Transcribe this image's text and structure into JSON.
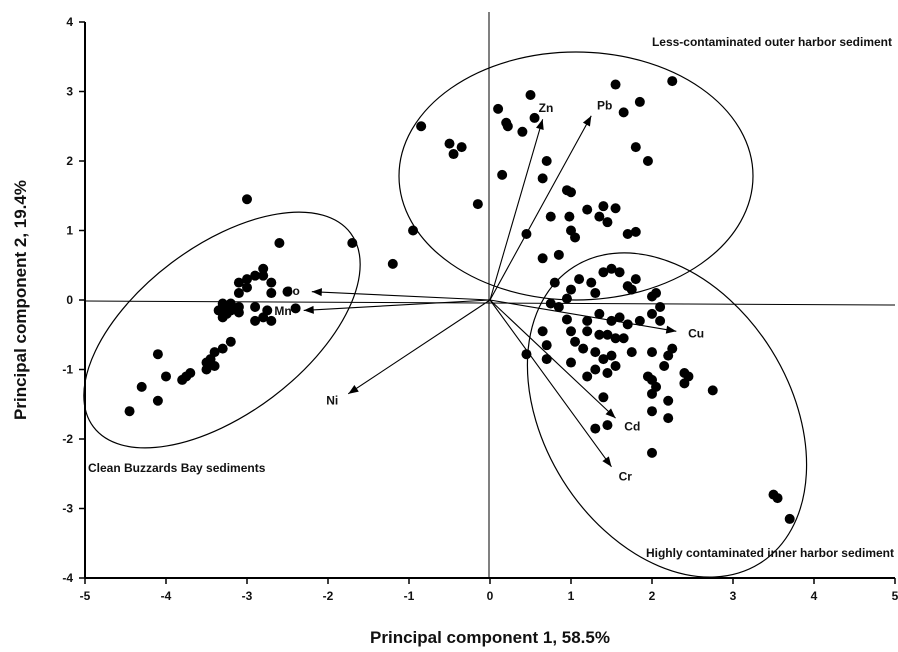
{
  "chart_data": {
    "type": "scatter",
    "title": "",
    "xlabel": "Principal component 1, 58.5%",
    "ylabel": "Principal component 2, 19.4%",
    "xlim": [
      -5,
      5
    ],
    "ylim": [
      -4,
      4
    ],
    "xticks": [
      "-5",
      "-4",
      "-3",
      "-2",
      "-1",
      "0",
      "1",
      "2",
      "3",
      "4",
      "5"
    ],
    "yticks": [
      "4",
      "3",
      "2",
      "1",
      "0",
      "-1",
      "-2",
      "-3",
      "-4"
    ],
    "grid": false,
    "origin_lines": true,
    "points": [
      [
        -3.0,
        1.45
      ],
      [
        -2.6,
        0.82
      ],
      [
        -1.7,
        0.82
      ],
      [
        -2.8,
        0.45
      ],
      [
        -2.9,
        0.35
      ],
      [
        -2.8,
        0.35
      ],
      [
        -3.0,
        0.3
      ],
      [
        -3.1,
        0.25
      ],
      [
        -2.7,
        0.25
      ],
      [
        -3.0,
        0.18
      ],
      [
        -2.5,
        0.12
      ],
      [
        -3.1,
        0.1
      ],
      [
        -2.7,
        0.1
      ],
      [
        -3.3,
        -0.05
      ],
      [
        -3.2,
        -0.05
      ],
      [
        -3.1,
        -0.1
      ],
      [
        -3.3,
        -0.1
      ],
      [
        -3.2,
        -0.15
      ],
      [
        -3.35,
        -0.15
      ],
      [
        -3.1,
        -0.18
      ],
      [
        -2.9,
        -0.1
      ],
      [
        -2.75,
        -0.15
      ],
      [
        -2.4,
        -0.12
      ],
      [
        -3.25,
        -0.2
      ],
      [
        -3.3,
        -0.25
      ],
      [
        -2.8,
        -0.25
      ],
      [
        -2.9,
        -0.3
      ],
      [
        -2.7,
        -0.3
      ],
      [
        -3.2,
        -0.6
      ],
      [
        -3.3,
        -0.7
      ],
      [
        -3.4,
        -0.75
      ],
      [
        -3.45,
        -0.85
      ],
      [
        -3.5,
        -0.9
      ],
      [
        -4.1,
        -0.78
      ],
      [
        -3.4,
        -0.95
      ],
      [
        -3.5,
        -1.0
      ],
      [
        -3.7,
        -1.05
      ],
      [
        -4.0,
        -1.1
      ],
      [
        -3.75,
        -1.1
      ],
      [
        -3.8,
        -1.15
      ],
      [
        -4.3,
        -1.25
      ],
      [
        -4.1,
        -1.45
      ],
      [
        -4.45,
        -1.6
      ],
      [
        -1.2,
        0.52
      ],
      [
        -0.95,
        1.0
      ],
      [
        -0.85,
        2.5
      ],
      [
        -0.5,
        2.25
      ],
      [
        -0.45,
        2.1
      ],
      [
        -0.35,
        2.2
      ],
      [
        -0.15,
        1.38
      ],
      [
        0.1,
        2.75
      ],
      [
        0.15,
        1.8
      ],
      [
        0.2,
        2.55
      ],
      [
        0.22,
        2.5
      ],
      [
        0.4,
        2.42
      ],
      [
        0.5,
        2.95
      ],
      [
        0.55,
        2.62
      ],
      [
        0.7,
        2.0
      ],
      [
        0.75,
        1.2
      ],
      [
        0.45,
        0.95
      ],
      [
        0.65,
        0.6
      ],
      [
        0.65,
        1.75
      ],
      [
        0.85,
        0.65
      ],
      [
        0.95,
        1.58
      ],
      [
        1.0,
        1.55
      ],
      [
        0.98,
        1.2
      ],
      [
        1.0,
        1.0
      ],
      [
        1.05,
        0.9
      ],
      [
        1.2,
        1.3
      ],
      [
        1.35,
        1.2
      ],
      [
        1.4,
        1.35
      ],
      [
        1.45,
        1.12
      ],
      [
        1.55,
        1.32
      ],
      [
        1.7,
        0.95
      ],
      [
        1.8,
        0.98
      ],
      [
        1.55,
        3.1
      ],
      [
        1.65,
        2.7
      ],
      [
        1.8,
        2.2
      ],
      [
        1.85,
        2.85
      ],
      [
        1.95,
        2.0
      ],
      [
        2.25,
        3.15
      ],
      [
        1.1,
        0.3
      ],
      [
        1.0,
        0.15
      ],
      [
        0.8,
        0.25
      ],
      [
        1.25,
        0.25
      ],
      [
        1.4,
        0.4
      ],
      [
        1.5,
        0.45
      ],
      [
        1.6,
        0.4
      ],
      [
        1.7,
        0.2
      ],
      [
        1.8,
        0.3
      ],
      [
        1.75,
        0.15
      ],
      [
        2.0,
        0.05
      ],
      [
        2.05,
        0.1
      ],
      [
        2.1,
        -0.1
      ],
      [
        1.3,
        0.1
      ],
      [
        0.95,
        0.02
      ],
      [
        0.75,
        -0.05
      ],
      [
        0.85,
        -0.1
      ],
      [
        0.95,
        -0.28
      ],
      [
        1.2,
        -0.3
      ],
      [
        1.35,
        -0.2
      ],
      [
        1.5,
        -0.3
      ],
      [
        1.6,
        -0.25
      ],
      [
        1.7,
        -0.35
      ],
      [
        1.85,
        -0.3
      ],
      [
        2.0,
        -0.2
      ],
      [
        2.1,
        -0.3
      ],
      [
        1.0,
        -0.45
      ],
      [
        1.2,
        -0.45
      ],
      [
        1.35,
        -0.5
      ],
      [
        1.45,
        -0.5
      ],
      [
        1.55,
        -0.55
      ],
      [
        1.65,
        -0.55
      ],
      [
        0.65,
        -0.45
      ],
      [
        0.7,
        -0.65
      ],
      [
        1.05,
        -0.6
      ],
      [
        1.15,
        -0.7
      ],
      [
        1.3,
        -0.75
      ],
      [
        1.5,
        -0.8
      ],
      [
        1.75,
        -0.75
      ],
      [
        2.0,
        -0.75
      ],
      [
        2.2,
        -0.8
      ],
      [
        2.25,
        -0.7
      ],
      [
        0.7,
        -0.85
      ],
      [
        1.0,
        -0.9
      ],
      [
        1.4,
        -0.85
      ],
      [
        1.55,
        -0.95
      ],
      [
        2.15,
        -0.95
      ],
      [
        2.4,
        -1.05
      ],
      [
        2.45,
        -1.1
      ],
      [
        1.3,
        -1.0
      ],
      [
        1.45,
        -1.05
      ],
      [
        1.95,
        -1.1
      ],
      [
        2.0,
        -1.15
      ],
      [
        2.4,
        -1.2
      ],
      [
        1.2,
        -1.1
      ],
      [
        0.45,
        -0.78
      ],
      [
        2.05,
        -1.25
      ],
      [
        2.0,
        -1.35
      ],
      [
        2.2,
        -1.45
      ],
      [
        2.75,
        -1.3
      ],
      [
        1.4,
        -1.4
      ],
      [
        2.0,
        -1.6
      ],
      [
        2.2,
        -1.7
      ],
      [
        1.3,
        -1.85
      ],
      [
        1.45,
        -1.8
      ],
      [
        2.0,
        -2.2
      ],
      [
        3.5,
        -2.8
      ],
      [
        3.55,
        -2.85
      ],
      [
        3.7,
        -3.15
      ]
    ],
    "loadings": [
      {
        "label": "Zn",
        "x": 0.65,
        "y": 2.6
      },
      {
        "label": "Pb",
        "x": 1.25,
        "y": 2.65
      },
      {
        "label": "Co",
        "x": -2.2,
        "y": 0.12
      },
      {
        "label": "Mn",
        "x": -2.3,
        "y": -0.15
      },
      {
        "label": "Ni",
        "x": -1.75,
        "y": -1.35
      },
      {
        "label": "Cu",
        "x": 2.3,
        "y": -0.45
      },
      {
        "label": "Cd",
        "x": 1.55,
        "y": -1.7
      },
      {
        "label": "Cr",
        "x": 1.5,
        "y": -2.4
      }
    ],
    "annotations": [
      "Less-contaminated outer harbor sediment",
      "Clean Buzzards Bay sediments",
      "Highly contaminated inner harbor sediment"
    ]
  }
}
